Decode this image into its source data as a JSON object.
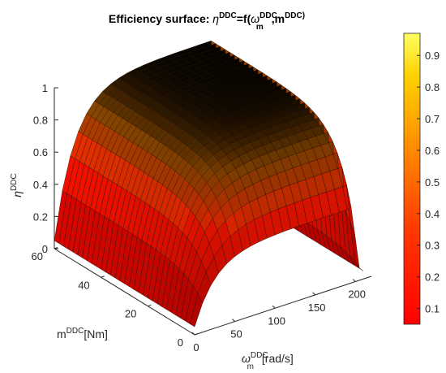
{
  "chart_data": {
    "type": "surface",
    "title": {
      "prefix": "Efficiency surface: ",
      "eta": "η",
      "eta_sup": "DDC",
      "mid": "=f(",
      "omega": "ω",
      "omega_sup": "DDC",
      "omega_sub": "m",
      "sep": ",m",
      "m_sup": "DDC)",
      "suffix": ")"
    },
    "xlabel": {
      "symbol": "ω",
      "sup": "DDC",
      "sub": "m",
      "unit": "[rad/s]"
    },
    "ylabel": {
      "symbol": "m",
      "sup": "DDC",
      "unit": "[Nm]"
    },
    "zlabel": {
      "symbol": "η",
      "sup": "DDC"
    },
    "x_ticks": [
      "0",
      "50",
      "100",
      "150",
      "200"
    ],
    "y_ticks": [
      "0",
      "20",
      "40",
      "60"
    ],
    "z_ticks": [
      "0",
      "0.2",
      "0.4",
      "0.6",
      "0.8",
      "1"
    ],
    "xlim": [
      0,
      220
    ],
    "ylim": [
      0,
      60
    ],
    "zlim": [
      0,
      1
    ],
    "colorbar": {
      "ticks": [
        "0.1",
        "0.2",
        "0.3",
        "0.4",
        "0.5",
        "0.6",
        "0.7",
        "0.8",
        "0.9"
      ],
      "range": [
        0.05,
        0.97
      ],
      "colormap": "hot"
    },
    "surface": {
      "omega": [
        0,
        10,
        20,
        30,
        40,
        50,
        60,
        70,
        80,
        90,
        100,
        110,
        120,
        130,
        140,
        150,
        160,
        170,
        180,
        190,
        195,
        200,
        205,
        210
      ],
      "torque": [
        0,
        2,
        4,
        6,
        8,
        10,
        12,
        14,
        16,
        18,
        20,
        22,
        24,
        26,
        28,
        30,
        32,
        34,
        36,
        38,
        40,
        42,
        44,
        46,
        48,
        50,
        52,
        54,
        56,
        58,
        60
      ],
      "efficiency_peak": 0.97,
      "efficiency_min": 0.05
    },
    "grid": true
  }
}
